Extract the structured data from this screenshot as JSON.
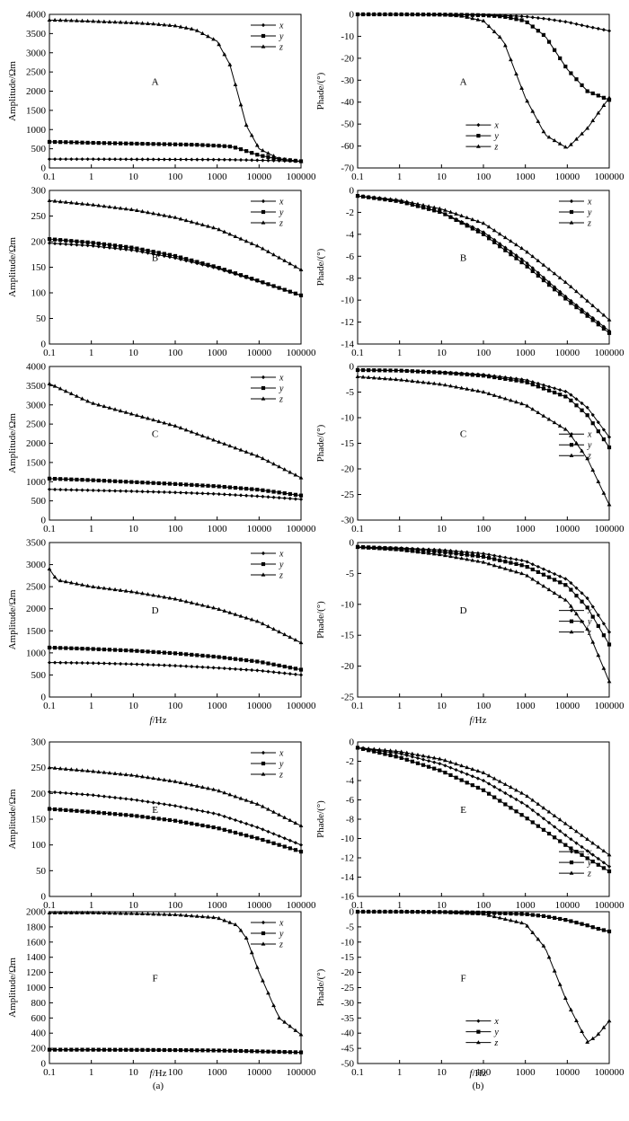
{
  "figure": {
    "caption_a": "(a)",
    "caption_b": "(b)",
    "xlabel_var": "f",
    "xlabel_unit": "/Hz"
  },
  "chart_data": [
    {
      "id": "a-A",
      "type": "line",
      "panel_tag": "A",
      "xscale": "log",
      "x": [
        0.1,
        0.3,
        1,
        3,
        10,
        30,
        100,
        300,
        1000,
        2000,
        3000,
        5000,
        10000,
        30000,
        100000
      ],
      "xticks": [
        "0.1",
        "1",
        "10",
        "100",
        "1000",
        "10000",
        "100000"
      ],
      "xlim": [
        0.1,
        100000
      ],
      "ylabel": "Amplitude/Ωm",
      "ylim": [
        0,
        4000
      ],
      "yticks": [
        "0",
        "500",
        "1000",
        "1500",
        "2000",
        "2500",
        "3000",
        "3500",
        "4000"
      ],
      "legend": "right-top",
      "series": [
        {
          "name": "x",
          "marker": "diamond",
          "y": [
            230,
            230,
            230,
            228,
            226,
            224,
            222,
            220,
            218,
            215,
            212,
            208,
            200,
            190,
            170
          ]
        },
        {
          "name": "y",
          "marker": "square",
          "y": [
            680,
            670,
            655,
            645,
            635,
            625,
            615,
            605,
            580,
            560,
            520,
            440,
            330,
            230,
            175
          ]
        },
        {
          "name": "z",
          "marker": "triangle",
          "y": [
            3850,
            3840,
            3820,
            3800,
            3780,
            3750,
            3700,
            3600,
            3300,
            2700,
            2000,
            1100,
            500,
            240,
            170
          ]
        }
      ]
    },
    {
      "id": "b-A",
      "type": "line",
      "panel_tag": "A",
      "xscale": "log",
      "x": [
        0.1,
        1,
        10,
        30,
        100,
        300,
        1000,
        3000,
        10000,
        30000,
        100000
      ],
      "xticks": [
        "0.1",
        "1",
        "10",
        "100",
        "1000",
        "10000",
        "100000"
      ],
      "xlim": [
        0.1,
        100000
      ],
      "ylabel": "Phade/(°)",
      "ylim": [
        -70,
        0
      ],
      "yticks": [
        "0",
        "-10",
        "-20",
        "-30",
        "-40",
        "-50",
        "-60",
        "-70"
      ],
      "legend": "left-bottom",
      "series": [
        {
          "name": "x",
          "marker": "diamond",
          "y": [
            0,
            0,
            -0.1,
            -0.2,
            -0.3,
            -0.5,
            -1,
            -2,
            -3.5,
            -5.5,
            -7.5
          ]
        },
        {
          "name": "y",
          "marker": "square",
          "y": [
            0,
            0,
            -0.1,
            -0.2,
            -0.4,
            -1,
            -3,
            -10,
            -25,
            -35,
            -39
          ]
        },
        {
          "name": "z",
          "marker": "triangle",
          "y": [
            0,
            0,
            -0.2,
            -0.8,
            -3,
            -12,
            -38,
            -55,
            -61,
            -52,
            -38
          ]
        }
      ]
    },
    {
      "id": "a-B",
      "type": "line",
      "panel_tag": "B",
      "xscale": "log",
      "x": [
        0.1,
        1,
        10,
        100,
        1000,
        10000,
        100000
      ],
      "xticks": [
        "0.1",
        "1",
        "10",
        "100",
        "1000",
        "10000",
        "100000"
      ],
      "xlim": [
        0.1,
        100000
      ],
      "ylabel": "Amplitude/Ωm",
      "ylim": [
        0,
        300
      ],
      "yticks": [
        "0",
        "50",
        "100",
        "150",
        "200",
        "250",
        "300"
      ],
      "legend": "right-top",
      "series": [
        {
          "name": "x",
          "marker": "diamond",
          "y": [
            197,
            192,
            183,
            168,
            148,
            122,
            95
          ]
        },
        {
          "name": "y",
          "marker": "square",
          "y": [
            205,
            198,
            188,
            172,
            150,
            123,
            95
          ]
        },
        {
          "name": "z",
          "marker": "triangle",
          "y": [
            280,
            272,
            262,
            247,
            225,
            190,
            145
          ]
        }
      ]
    },
    {
      "id": "b-B",
      "type": "line",
      "panel_tag": "B",
      "xscale": "log",
      "x": [
        0.1,
        1,
        10,
        100,
        1000,
        10000,
        100000
      ],
      "xticks": [
        "0.1",
        "1",
        "10",
        "100",
        "1000",
        "10000",
        "100000"
      ],
      "xlim": [
        0.1,
        100000
      ],
      "ylabel": "Phade/(°)",
      "ylim": [
        -14,
        0
      ],
      "yticks": [
        "0",
        "-2",
        "-4",
        "-6",
        "-8",
        "-10",
        "-12",
        "-14"
      ],
      "legend": "right-top",
      "series": [
        {
          "name": "x",
          "marker": "diamond",
          "y": [
            -0.5,
            -1.0,
            -2.0,
            -3.8,
            -6.5,
            -9.8,
            -12.8
          ]
        },
        {
          "name": "y",
          "marker": "square",
          "y": [
            -0.5,
            -1.0,
            -2.0,
            -4.0,
            -6.8,
            -10.0,
            -13.0
          ]
        },
        {
          "name": "z",
          "marker": "triangle",
          "y": [
            -0.5,
            -0.9,
            -1.7,
            -3.0,
            -5.5,
            -8.5,
            -11.8
          ]
        }
      ]
    },
    {
      "id": "a-C",
      "type": "line",
      "panel_tag": "C",
      "xscale": "log",
      "x": [
        0.1,
        1,
        10,
        100,
        1000,
        10000,
        100000
      ],
      "xticks": [
        "0.1",
        "1",
        "10",
        "100",
        "1000",
        "10000",
        "100000"
      ],
      "xlim": [
        0.1,
        100000
      ],
      "ylabel": "Amplitude/Ωm",
      "ylim": [
        0,
        4000
      ],
      "yticks": [
        "0",
        "500",
        "1000",
        "1500",
        "2000",
        "2500",
        "3000",
        "3500",
        "4000"
      ],
      "legend": "right-top",
      "series": [
        {
          "name": "x",
          "marker": "diamond",
          "y": [
            800,
            775,
            750,
            720,
            680,
            620,
            540
          ]
        },
        {
          "name": "y",
          "marker": "square",
          "y": [
            1080,
            1040,
            990,
            940,
            880,
            790,
            640
          ]
        },
        {
          "name": "z",
          "marker": "triangle",
          "y": [
            3550,
            3050,
            2750,
            2450,
            2050,
            1650,
            1100
          ]
        }
      ]
    },
    {
      "id": "b-C",
      "type": "line",
      "panel_tag": "C",
      "xscale": "log",
      "x": [
        0.1,
        1,
        10,
        100,
        1000,
        10000,
        30000,
        100000
      ],
      "xticks": [
        "0.1",
        "1",
        "10",
        "100",
        "1000",
        "10000",
        "100000"
      ],
      "xlim": [
        0.1,
        100000
      ],
      "ylabel": "Phade/(°)",
      "ylim": [
        -30,
        0
      ],
      "yticks": [
        "0",
        "-5",
        "-10",
        "-15",
        "-20",
        "-25",
        "-30"
      ],
      "legend": "right-middle",
      "series": [
        {
          "name": "x",
          "marker": "diamond",
          "y": [
            -0.7,
            -0.8,
            -1.1,
            -1.6,
            -2.6,
            -5.0,
            -8.0,
            -13.8
          ]
        },
        {
          "name": "y",
          "marker": "square",
          "y": [
            -0.7,
            -0.8,
            -1.2,
            -1.8,
            -3.0,
            -6.0,
            -9.5,
            -15.8
          ]
        },
        {
          "name": "z",
          "marker": "triangle",
          "y": [
            -2.0,
            -2.6,
            -3.5,
            -5.0,
            -7.5,
            -12.5,
            -18.0,
            -27.0
          ]
        }
      ]
    },
    {
      "id": "a-D",
      "type": "line",
      "panel_tag": "D",
      "xscale": "log",
      "x": [
        0.1,
        0.15,
        1,
        10,
        100,
        1000,
        10000,
        100000
      ],
      "xticks": [
        "0.1",
        "1",
        "10",
        "100",
        "1000",
        "10000",
        "100000"
      ],
      "xlim": [
        0.1,
        100000
      ],
      "ylabel": "Amplitude/Ωm",
      "ylim": [
        0,
        3500
      ],
      "yticks": [
        "0",
        "500",
        "1000",
        "1500",
        "2000",
        "2500",
        "3000",
        "3500"
      ],
      "legend": "right-top",
      "series": [
        {
          "name": "x",
          "marker": "diamond",
          "y": [
            780,
            780,
            770,
            745,
            710,
            660,
            600,
            500
          ]
        },
        {
          "name": "y",
          "marker": "square",
          "y": [
            1120,
            1115,
            1090,
            1050,
            990,
            910,
            800,
            620
          ]
        },
        {
          "name": "z",
          "marker": "triangle",
          "y": [
            2900,
            2650,
            2500,
            2380,
            2220,
            2000,
            1700,
            1230
          ]
        }
      ]
    },
    {
      "id": "b-D",
      "type": "line",
      "panel_tag": "D",
      "xscale": "log",
      "x": [
        0.1,
        1,
        10,
        100,
        1000,
        10000,
        30000,
        100000
      ],
      "xticks": [
        "0.1",
        "1",
        "10",
        "100",
        "1000",
        "10000",
        "100000"
      ],
      "xlim": [
        0.1,
        100000
      ],
      "ylabel": "Phade/(°)",
      "ylim": [
        -25,
        0
      ],
      "yticks": [
        "0",
        "-5",
        "-10",
        "-15",
        "-20",
        "-25"
      ],
      "legend": "right-middle",
      "series": [
        {
          "name": "x",
          "marker": "diamond",
          "y": [
            -0.7,
            -0.9,
            -1.2,
            -1.8,
            -3.0,
            -6.0,
            -9.0,
            -14.5
          ]
        },
        {
          "name": "y",
          "marker": "square",
          "y": [
            -0.7,
            -1.0,
            -1.5,
            -2.3,
            -3.8,
            -7.0,
            -10.5,
            -16.5
          ]
        },
        {
          "name": "z",
          "marker": "triangle",
          "y": [
            -0.8,
            -1.2,
            -2.0,
            -3.2,
            -5.2,
            -9.5,
            -14.0,
            -22.5
          ]
        }
      ]
    },
    {
      "id": "a-E",
      "type": "line",
      "panel_tag": "E",
      "xscale": "log",
      "x": [
        0.1,
        1,
        10,
        100,
        1000,
        10000,
        100000
      ],
      "xticks": [
        "0.1",
        "1",
        "10",
        "100",
        "1000",
        "10000",
        "100000"
      ],
      "xlim": [
        0.1,
        100000
      ],
      "ylabel": "Amplitude/Ωm",
      "ylim": [
        0,
        300
      ],
      "yticks": [
        "0",
        "50",
        "100",
        "150",
        "200",
        "250",
        "300"
      ],
      "legend": "right-top",
      "series": [
        {
          "name": "x",
          "marker": "diamond",
          "y": [
            203,
            197,
            188,
            176,
            160,
            133,
            100
          ]
        },
        {
          "name": "y",
          "marker": "square",
          "y": [
            170,
            164,
            157,
            147,
            133,
            112,
            87
          ]
        },
        {
          "name": "z",
          "marker": "triangle",
          "y": [
            250,
            243,
            235,
            223,
            206,
            178,
            137
          ]
        }
      ]
    },
    {
      "id": "b-E",
      "type": "line",
      "panel_tag": "E",
      "xscale": "log",
      "x": [
        0.1,
        1,
        10,
        100,
        1000,
        10000,
        100000
      ],
      "xticks": [
        "0.1",
        "1",
        "10",
        "100",
        "1000",
        "10000",
        "100000"
      ],
      "xlim": [
        0.1,
        100000
      ],
      "ylabel": "Phade/(°)",
      "ylim": [
        -16,
        0
      ],
      "yticks": [
        "0",
        "-2",
        "-4",
        "-6",
        "-8",
        "-10",
        "-12",
        "-14",
        "-16"
      ],
      "legend": "right-bottom",
      "series": [
        {
          "name": "x",
          "marker": "diamond",
          "y": [
            -0.6,
            -1.2,
            -2.3,
            -4.0,
            -6.5,
            -9.8,
            -12.9
          ]
        },
        {
          "name": "y",
          "marker": "square",
          "y": [
            -0.6,
            -1.6,
            -3.0,
            -5.0,
            -7.8,
            -10.8,
            -13.4
          ]
        },
        {
          "name": "z",
          "marker": "triangle",
          "y": [
            -0.6,
            -1.0,
            -1.8,
            -3.2,
            -5.5,
            -8.6,
            -11.7
          ]
        }
      ]
    },
    {
      "id": "a-F",
      "type": "line",
      "panel_tag": "F",
      "xscale": "log",
      "x": [
        0.1,
        1,
        10,
        100,
        1000,
        3000,
        5000,
        10000,
        30000,
        100000
      ],
      "xticks": [
        "0.1",
        "1",
        "10",
        "100",
        "1000",
        "10000",
        "100000"
      ],
      "xlim": [
        0.1,
        100000
      ],
      "ylabel": "Amplitude/Ωm",
      "ylim": [
        0,
        2000
      ],
      "yticks": [
        "0",
        "200",
        "400",
        "600",
        "800",
        "1000",
        "1200",
        "1400",
        "1600",
        "1800",
        "2000"
      ],
      "legend": "right-top",
      "series": [
        {
          "name": "x",
          "marker": "diamond",
          "y": [
            180,
            180,
            178,
            175,
            170,
            165,
            162,
            158,
            152,
            145
          ]
        },
        {
          "name": "y",
          "marker": "square",
          "y": [
            182,
            182,
            180,
            177,
            172,
            167,
            164,
            160,
            154,
            147
          ]
        },
        {
          "name": "z",
          "marker": "triangle",
          "y": [
            1985,
            1985,
            1975,
            1960,
            1920,
            1820,
            1650,
            1200,
            600,
            380
          ]
        }
      ]
    },
    {
      "id": "b-F",
      "type": "line",
      "panel_tag": "F",
      "xscale": "log",
      "x": [
        0.1,
        1,
        10,
        100,
        1000,
        3000,
        10000,
        30000,
        50000,
        100000
      ],
      "xticks": [
        "0.1",
        "1",
        "10",
        "100",
        "1000",
        "10000",
        "100000"
      ],
      "xlim": [
        0.1,
        100000
      ],
      "ylabel": "Phade/(°)",
      "ylim": [
        -50,
        0
      ],
      "yticks": [
        "0",
        "-5",
        "-10",
        "-15",
        "-20",
        "-25",
        "-30",
        "-35",
        "-40",
        "-45",
        "-50"
      ],
      "legend": "left-bottom",
      "series": [
        {
          "name": "x",
          "marker": "diamond",
          "y": [
            0,
            0,
            -0.1,
            -0.3,
            -0.8,
            -1.5,
            -2.8,
            -4.5,
            -5.5,
            -6.5
          ]
        },
        {
          "name": "y",
          "marker": "square",
          "y": [
            0,
            0,
            -0.1,
            -0.3,
            -0.8,
            -1.5,
            -2.8,
            -4.5,
            -5.5,
            -6.5
          ]
        },
        {
          "name": "z",
          "marker": "triangle",
          "y": [
            0,
            0,
            -0.2,
            -0.8,
            -4,
            -12,
            -30,
            -43,
            -41,
            -36
          ]
        }
      ]
    }
  ]
}
